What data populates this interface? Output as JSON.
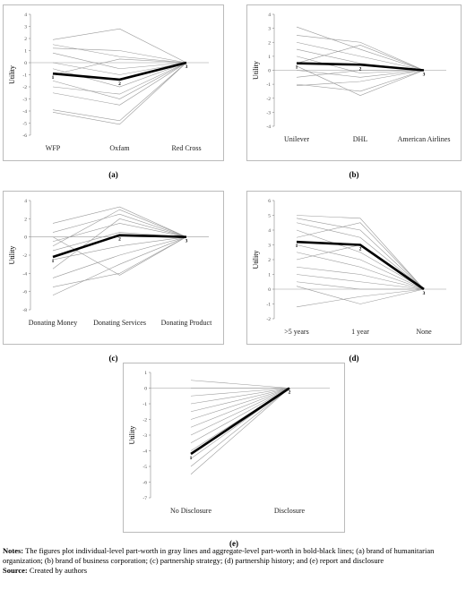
{
  "chart_data": [
    {
      "type": "line",
      "panel_label": "(a)",
      "y_label": "Utility",
      "categories": [
        "WFP",
        "Oxfam",
        "Red Cross"
      ],
      "point_labels": [
        "1",
        "2",
        "3"
      ],
      "ylim": [
        -6,
        4
      ],
      "yticks": [
        -6,
        -5,
        -4,
        -3,
        -2,
        -1,
        0,
        1,
        2,
        3,
        4
      ],
      "individual_color": "#9a9a9a",
      "aggregate_color": "#000000",
      "individual_lines": [
        [
          1.9,
          2.8,
          0
        ],
        [
          1.5,
          0.5,
          0
        ],
        [
          0.8,
          -0.5,
          0
        ],
        [
          0,
          -1,
          0
        ],
        [
          -0.5,
          -2,
          0
        ],
        [
          -1.5,
          -3,
          0
        ],
        [
          -2.5,
          -3.5,
          0
        ],
        [
          -3.9,
          -4.8,
          0
        ],
        [
          -4.1,
          -5.1,
          0
        ],
        [
          1.2,
          1,
          0
        ],
        [
          -1,
          0.3,
          0
        ],
        [
          -2,
          -2.6,
          0
        ]
      ],
      "aggregate": [
        -0.9,
        -1.4,
        0
      ]
    },
    {
      "type": "line",
      "panel_label": "(b)",
      "y_label": "Utility",
      "categories": [
        "Unilever",
        "DHL",
        "American Airlines"
      ],
      "point_labels": [
        "1",
        "2",
        "3"
      ],
      "ylim": [
        -4,
        4
      ],
      "yticks": [
        -4,
        -3,
        -2,
        -1,
        0,
        1,
        2,
        3,
        4
      ],
      "individual_color": "#9a9a9a",
      "aggregate_color": "#000000",
      "individual_lines": [
        [
          3.1,
          1.5,
          0
        ],
        [
          2.5,
          2,
          0
        ],
        [
          2,
          1,
          0
        ],
        [
          1.5,
          0.5,
          0
        ],
        [
          1,
          -0.2,
          0
        ],
        [
          0.5,
          1.8,
          0
        ],
        [
          0,
          -0.5,
          0
        ],
        [
          -0.5,
          0,
          0
        ],
        [
          -1,
          -1.5,
          0
        ],
        [
          -1.1,
          -0.8,
          0
        ],
        [
          0.3,
          -1.8,
          0
        ]
      ],
      "aggregate": [
        0.5,
        0.4,
        0
      ]
    },
    {
      "type": "line",
      "panel_label": "(c)",
      "y_label": "Utility",
      "categories": [
        "Donating Money",
        "Donating Services",
        "Donating Product"
      ],
      "point_labels": [
        "1",
        "2",
        "3"
      ],
      "ylim": [
        -8,
        4
      ],
      "yticks": [
        -8,
        -6,
        -4,
        -2,
        0,
        2,
        4
      ],
      "individual_color": "#9a9a9a",
      "aggregate_color": "#000000",
      "individual_lines": [
        [
          1.5,
          3.3,
          0
        ],
        [
          0.5,
          2.5,
          0
        ],
        [
          -0.5,
          1.5,
          0
        ],
        [
          -1.5,
          0.5,
          0
        ],
        [
          -2.5,
          -1,
          0
        ],
        [
          -3.5,
          2,
          0
        ],
        [
          -4.5,
          -2,
          0
        ],
        [
          -5.5,
          -4,
          0
        ],
        [
          -6.4,
          -3,
          0
        ],
        [
          0,
          -4.2,
          0
        ],
        [
          -1,
          3,
          0
        ]
      ],
      "aggregate": [
        -2.2,
        0.2,
        0
      ]
    },
    {
      "type": "line",
      "panel_label": "(d)",
      "y_label": "Utility",
      "categories": [
        ">5 years",
        "1 year",
        "None"
      ],
      "point_labels": [
        "1",
        "2",
        "3"
      ],
      "ylim": [
        -2,
        6
      ],
      "yticks": [
        -2,
        -1,
        0,
        1,
        2,
        3,
        4,
        5,
        6
      ],
      "individual_color": "#9a9a9a",
      "aggregate_color": "#000000",
      "individual_lines": [
        [
          5,
          4.8,
          0
        ],
        [
          4.8,
          4,
          0
        ],
        [
          4.5,
          3.5,
          0
        ],
        [
          4,
          2.5,
          0
        ],
        [
          3.5,
          4.5,
          0
        ],
        [
          3,
          2,
          0
        ],
        [
          2.5,
          1.5,
          0
        ],
        [
          2,
          3,
          0
        ],
        [
          1.5,
          1,
          0
        ],
        [
          1,
          0.5,
          0
        ],
        [
          0.5,
          0,
          0
        ],
        [
          -1.2,
          -0.5,
          0
        ],
        [
          0.2,
          -1,
          0
        ]
      ],
      "aggregate": [
        3.2,
        3.0,
        0
      ]
    },
    {
      "type": "line",
      "panel_label": "(e)",
      "y_label": "Utility",
      "categories": [
        "No Disclosure",
        "Disclosure"
      ],
      "point_labels": [
        "1",
        "2"
      ],
      "ylim": [
        -7,
        1
      ],
      "yticks": [
        -7,
        -6,
        -5,
        -4,
        -3,
        -2,
        -1,
        0,
        1
      ],
      "individual_color": "#9a9a9a",
      "aggregate_color": "#000000",
      "individual_lines": [
        [
          0.5,
          0
        ],
        [
          0,
          0
        ],
        [
          -0.5,
          0
        ],
        [
          -1,
          0
        ],
        [
          -1.5,
          0
        ],
        [
          -2,
          0
        ],
        [
          -2.5,
          0
        ],
        [
          -3,
          0
        ],
        [
          -3.5,
          0
        ],
        [
          -4,
          0
        ],
        [
          -4.5,
          0
        ],
        [
          -5,
          0
        ],
        [
          -5.5,
          0
        ]
      ],
      "aggregate": [
        -4.2,
        0
      ]
    }
  ],
  "notes": {
    "label": "Notes:",
    "text": "The figures plot individual-level part-worth in gray lines and aggregate-level part-worth in bold-black lines; (a) brand of humanitarian organization; (b) brand of business corporation; (c) partnership strategy; (d) partnership history; and (e) report and disclosure"
  },
  "source": {
    "label": "Source:",
    "text": "Created by authors"
  }
}
